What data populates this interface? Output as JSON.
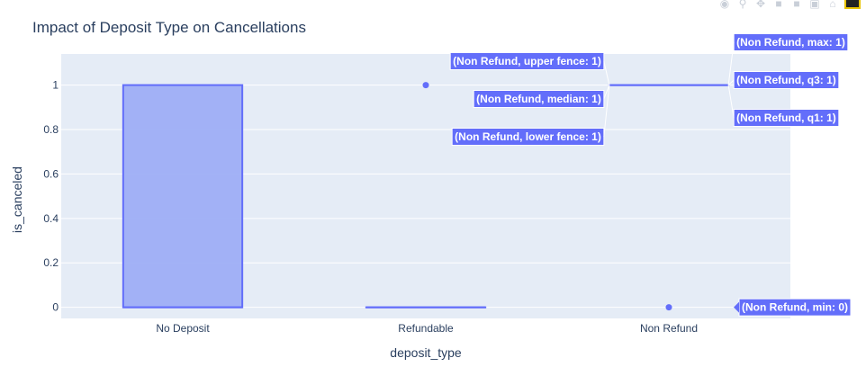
{
  "modebar": {
    "icons": [
      "camera-icon",
      "zoom-icon",
      "pan-icon",
      "zoom-in-icon",
      "zoom-out-icon",
      "autoscale-icon",
      "reset-icon",
      "plotly-logo-icon"
    ]
  },
  "hover": {
    "labels": [
      "(Non Refund, upper fence: 1)",
      "(Non Refund, median: 1)",
      "(Non Refund, lower fence: 1)",
      "(Non Refund, max: 1)",
      "(Non Refund, q3: 1)",
      "(Non Refund, q1: 1)",
      "(Non Refund, min: 0)"
    ]
  },
  "colors": {
    "box_fill": "#9eaef6",
    "box_line": "#636efa",
    "plot_bg": "#e5ecf6",
    "hover_bg": "#636efa"
  },
  "chart_data": {
    "type": "box",
    "title": "Impact of Deposit Type on Cancellations",
    "xlabel": "deposit_type",
    "ylabel": "is_canceled",
    "categories": [
      "No Deposit",
      "Refundable",
      "Non Refund"
    ],
    "ylim": [
      -0.05,
      1.14
    ],
    "yticks": [
      0,
      0.2,
      0.4,
      0.6,
      0.8,
      1
    ],
    "ytick_labels": [
      "0",
      "0.2",
      "0.4",
      "0.6",
      "0.8",
      "1"
    ],
    "grid": true,
    "boxes": [
      {
        "category": "No Deposit",
        "min": 0,
        "q1": 0,
        "median": 0,
        "q3": 1,
        "max": 1,
        "outliers": []
      },
      {
        "category": "Refundable",
        "min": 0,
        "q1": 0,
        "median": 0,
        "q3": 0,
        "max": 0,
        "outliers": [
          1
        ]
      },
      {
        "category": "Non Refund",
        "min": 1,
        "q1": 1,
        "median": 1,
        "q3": 1,
        "max": 1,
        "outliers": [
          0
        ]
      }
    ]
  }
}
